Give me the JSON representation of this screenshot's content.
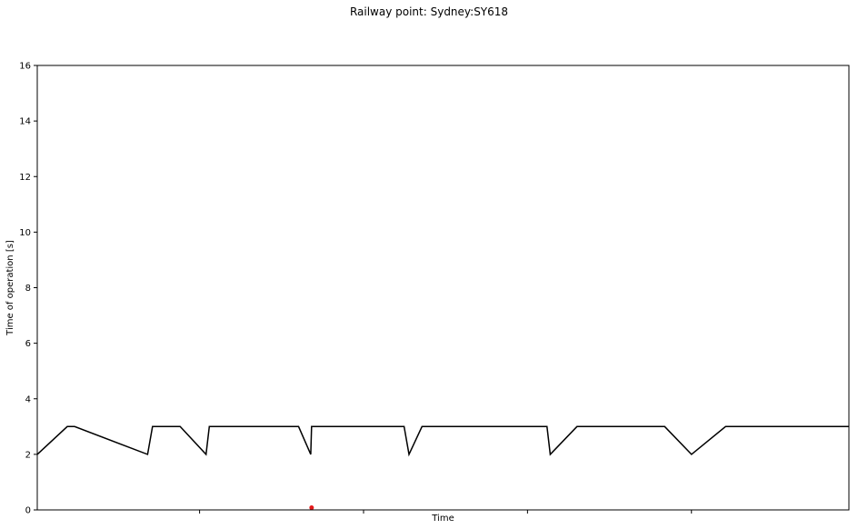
{
  "chart_data": {
    "type": "line",
    "title": "Railway point: Sydney:SY618",
    "xlabel": "Time",
    "ylabel": "Time of operation [s]",
    "ylim": [
      0,
      16
    ],
    "yticks": [
      0,
      2,
      4,
      6,
      8,
      10,
      12,
      14,
      16
    ],
    "xlim": [
      0,
      100
    ],
    "xticks_unlabeled": [
      20,
      40.2,
      60.4,
      80.6
    ],
    "grid": false,
    "series": [
      {
        "color": "#000000",
        "x": [
          0,
          3.7,
          4.6,
          13.6,
          14.2,
          17.6,
          20.8,
          21.2,
          32.2,
          33.7,
          33.8,
          45.2,
          45.8,
          47.4,
          62.8,
          63.2,
          66.5,
          77.3,
          80.6,
          84.8,
          100
        ],
        "y": [
          2,
          3,
          3,
          2,
          3,
          3,
          2,
          3,
          3,
          2,
          3,
          3,
          2,
          3,
          3,
          2,
          3,
          3,
          2,
          3,
          3
        ]
      }
    ],
    "markers": [
      {
        "x": 33.8,
        "y": 0.08,
        "color": "#e31a1c"
      }
    ]
  }
}
